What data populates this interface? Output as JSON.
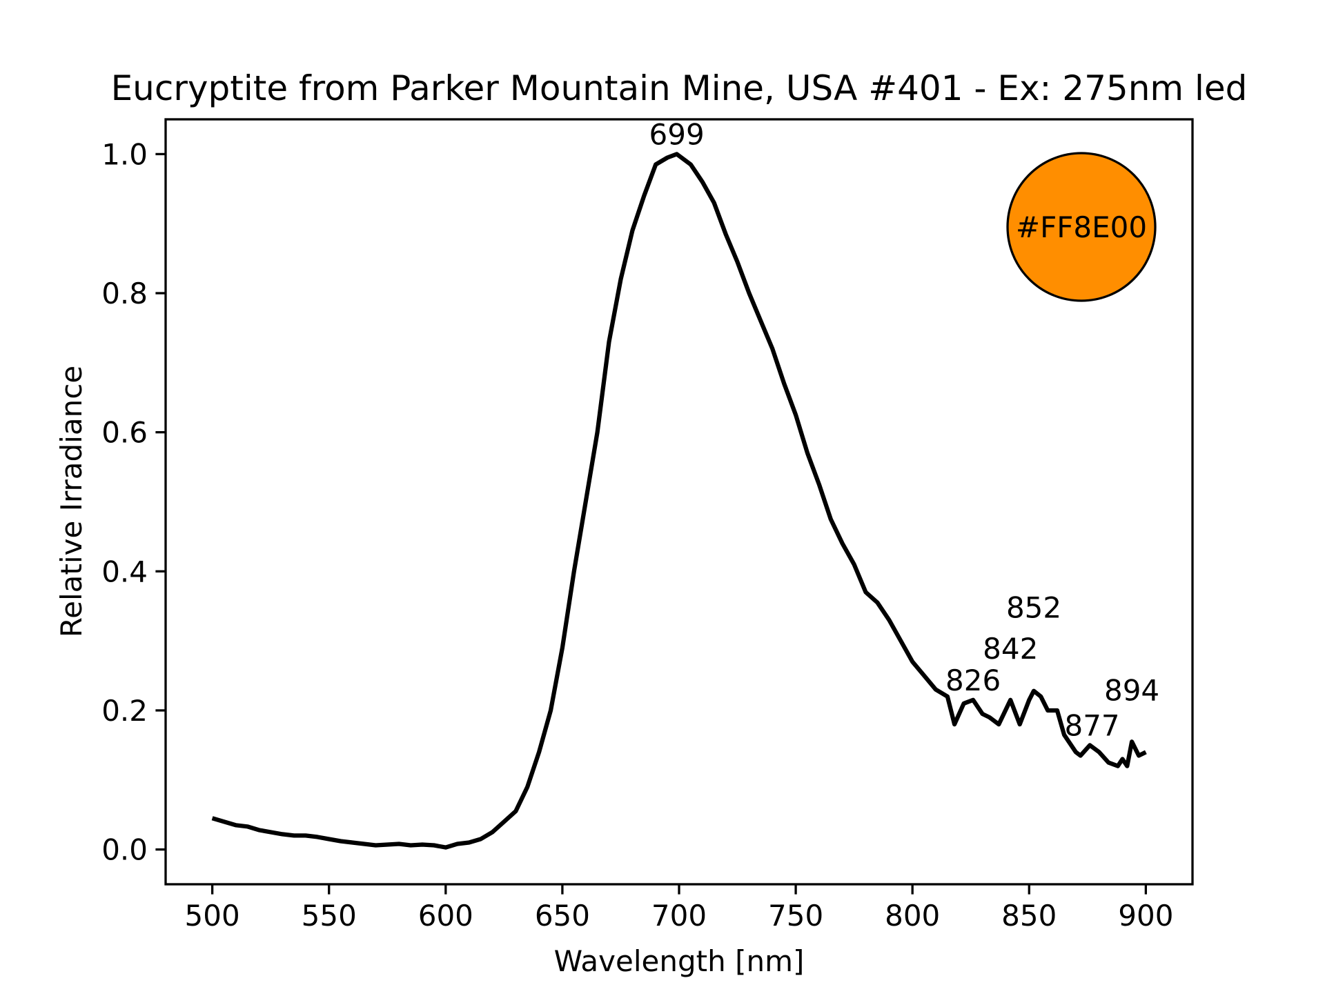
{
  "chart_data": {
    "type": "line",
    "title": "Eucryptite from Parker Mountain Mine, USA #401 - Ex: 275nm led",
    "xlabel": "Wavelength [nm]",
    "ylabel": "Relative Irradiance",
    "xlim": [
      480,
      920
    ],
    "ylim": [
      -0.05,
      1.05
    ],
    "xticks": [
      500,
      550,
      600,
      650,
      700,
      750,
      800,
      850,
      900
    ],
    "yticks": [
      0.0,
      0.2,
      0.4,
      0.6,
      0.8,
      1.0
    ],
    "ytick_labels": [
      "0.0",
      "0.2",
      "0.4",
      "0.6",
      "0.8",
      "1.0"
    ],
    "grid": false,
    "series": [
      {
        "name": "spectrum",
        "color": "#000000",
        "x": [
          500,
          505,
          510,
          515,
          520,
          525,
          530,
          535,
          540,
          545,
          550,
          555,
          560,
          565,
          570,
          575,
          580,
          585,
          590,
          595,
          600,
          605,
          610,
          615,
          620,
          625,
          630,
          635,
          640,
          645,
          650,
          655,
          660,
          665,
          670,
          675,
          680,
          685,
          690,
          695,
          699,
          705,
          710,
          715,
          720,
          725,
          730,
          735,
          740,
          745,
          750,
          755,
          760,
          765,
          770,
          775,
          780,
          785,
          790,
          795,
          800,
          805,
          810,
          815,
          818,
          822,
          826,
          830,
          833,
          837,
          842,
          846,
          850,
          852,
          855,
          858,
          862,
          865,
          870,
          872,
          876,
          880,
          884,
          888,
          890,
          892,
          894,
          897,
          900
        ],
        "y": [
          0.045,
          0.04,
          0.035,
          0.033,
          0.028,
          0.025,
          0.022,
          0.02,
          0.02,
          0.018,
          0.015,
          0.012,
          0.01,
          0.008,
          0.006,
          0.007,
          0.008,
          0.006,
          0.007,
          0.006,
          0.003,
          0.008,
          0.01,
          0.015,
          0.025,
          0.04,
          0.055,
          0.09,
          0.14,
          0.2,
          0.29,
          0.4,
          0.5,
          0.6,
          0.73,
          0.82,
          0.89,
          0.94,
          0.985,
          0.995,
          1.0,
          0.985,
          0.96,
          0.93,
          0.885,
          0.845,
          0.8,
          0.76,
          0.72,
          0.67,
          0.625,
          0.57,
          0.525,
          0.475,
          0.44,
          0.41,
          0.37,
          0.355,
          0.33,
          0.3,
          0.27,
          0.25,
          0.23,
          0.22,
          0.18,
          0.21,
          0.215,
          0.195,
          0.19,
          0.18,
          0.215,
          0.18,
          0.215,
          0.228,
          0.22,
          0.2,
          0.2,
          0.165,
          0.14,
          0.135,
          0.15,
          0.14,
          0.125,
          0.12,
          0.13,
          0.12,
          0.155,
          0.135,
          0.14
        ]
      }
    ],
    "peaks": [
      {
        "label": "699",
        "x": 699,
        "y": 1.0
      },
      {
        "label": "826",
        "x": 826,
        "y": 0.215
      },
      {
        "label": "842",
        "x": 842,
        "y": 0.215
      },
      {
        "label": "852",
        "x": 852,
        "y": 0.228
      },
      {
        "label": "877",
        "x": 877,
        "y": 0.15
      },
      {
        "label": "894",
        "x": 894,
        "y": 0.155
      }
    ],
    "color_swatch": {
      "label": "#FF8E00",
      "color": "#FF8E00"
    }
  }
}
